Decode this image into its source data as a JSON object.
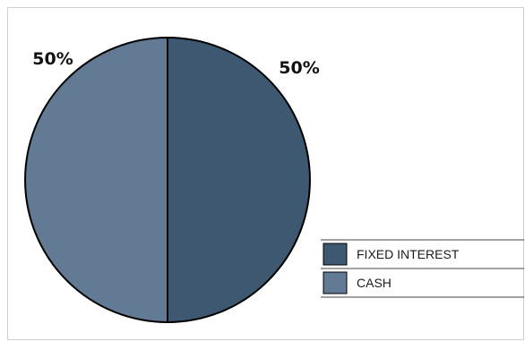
{
  "chart_data": {
    "type": "pie",
    "slices": [
      {
        "label": "FIXED INTEREST",
        "value": 50,
        "display": "50%",
        "color": "#3d5870"
      },
      {
        "label": "CASH",
        "value": 50,
        "display": "50%",
        "color": "#637a95"
      }
    ],
    "legend_placement": "bottom-right",
    "slice_border_color": "#000000"
  }
}
